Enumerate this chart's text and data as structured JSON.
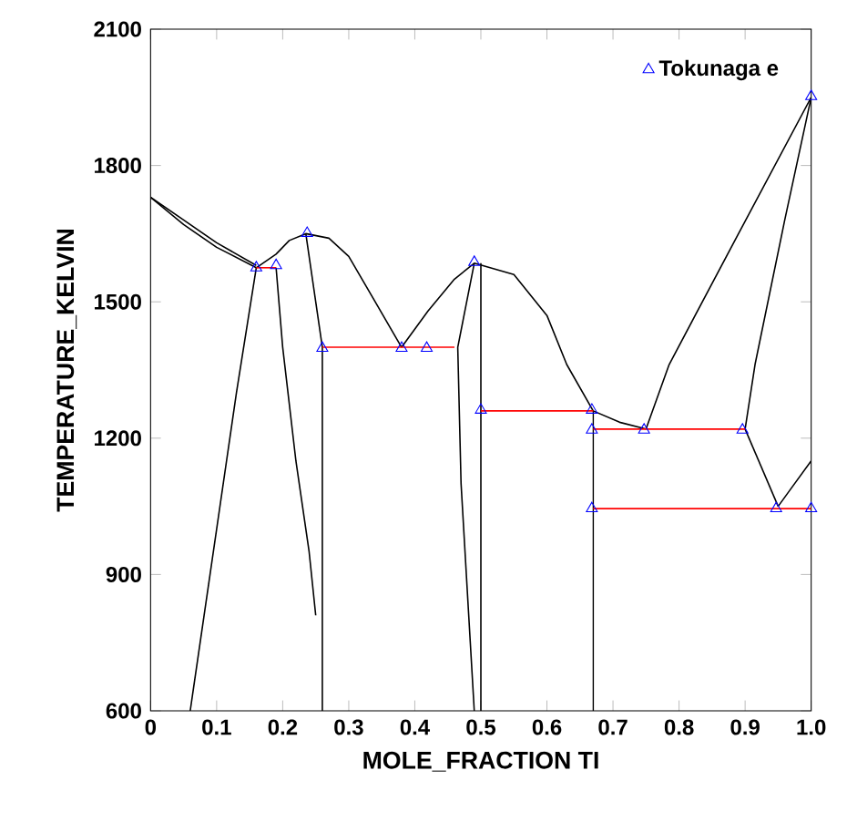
{
  "chart_data": {
    "type": "line",
    "xlabel": "MOLE_FRACTION TI",
    "ylabel": "TEMPERATURE_KELVIN",
    "xlim": [
      0,
      1
    ],
    "ylim": [
      600,
      2100
    ],
    "xticks": [
      0,
      0.1,
      0.2,
      0.3,
      0.4,
      0.5,
      0.6,
      0.7,
      0.8,
      0.9,
      {
        "value": 1,
        "label": "1.0"
      }
    ],
    "yticks": [
      600,
      900,
      1200,
      1500,
      1800,
      2100
    ],
    "grid": false,
    "legend": "top right",
    "marker": "none",
    "line_style": "solid",
    "series": [
      {
        "color": "#000000",
        "x": [
          0,
          0.05,
          0.1,
          0.16
        ],
        "values": [
          1730,
          1680,
          1630,
          1580
        ]
      },
      {
        "color": "#000000",
        "x": [
          0,
          0.05,
          0.1,
          0.16
        ],
        "values": [
          1730,
          1670,
          1620,
          1575
        ]
      },
      {
        "color": "#000000",
        "x": [
          0.16,
          0.19,
          0.21,
          0.235,
          0.27,
          0.3,
          0.34,
          0.38
        ],
        "values": [
          1575,
          1605,
          1635,
          1650,
          1640,
          1600,
          1500,
          1400
        ]
      },
      {
        "color": "#000000",
        "x": [
          0.38,
          0.42,
          0.46,
          0.49,
          0.55,
          0.6,
          0.63,
          0.67,
          0.71,
          0.75
        ],
        "values": [
          1400,
          1480,
          1550,
          1585,
          1560,
          1470,
          1362,
          1260,
          1235,
          1220
        ]
      },
      {
        "color": "#000000",
        "x": [
          0.75,
          0.785,
          0.89,
          1.0
        ],
        "values": [
          1220,
          1362,
          1650,
          1950
        ]
      },
      {
        "color": "#000000",
        "x": [
          0.9,
          0.915,
          0.96,
          1.0
        ],
        "values": [
          1220,
          1362,
          1680,
          1950
        ]
      },
      {
        "color": "#000000",
        "x": [
          0.9,
          0.95
        ],
        "values": [
          1220,
          1050
        ]
      },
      {
        "color": "#000000",
        "x": [
          0.95,
          0.97,
          1.0
        ],
        "values": [
          1050,
          1090,
          1150
        ]
      },
      {
        "color": "#000000",
        "x": [
          0.06,
          0.1,
          0.13,
          0.16
        ],
        "values": [
          600,
          1000,
          1300,
          1575
        ]
      },
      {
        "color": "#000000",
        "x": [
          0.19,
          0.2,
          0.22,
          0.24,
          0.25
        ],
        "values": [
          1575,
          1400,
          1150,
          950,
          810
        ]
      },
      {
        "color": "#000000",
        "x": [
          0.235,
          0.26,
          0.26
        ],
        "values": [
          1650,
          1400,
          600
        ]
      },
      {
        "color": "#000000",
        "x": [
          0.49,
          0.465,
          0.47,
          0.49
        ],
        "values": [
          1585,
          1400,
          1100,
          600
        ]
      },
      {
        "color": "#000000",
        "x": [
          0.5,
          0.5
        ],
        "values": [
          1585,
          600
        ]
      },
      {
        "color": "#000000",
        "x": [
          0.67,
          0.67
        ],
        "values": [
          1260,
          600
        ]
      },
      {
        "color": "#ff0000",
        "x": [
          0.16,
          0.19
        ],
        "values": [
          1575,
          1575
        ]
      },
      {
        "color": "#ff0000",
        "x": [
          0.26,
          0.46
        ],
        "values": [
          1400,
          1400
        ]
      },
      {
        "color": "#ff0000",
        "x": [
          0.5,
          0.67
        ],
        "values": [
          1260,
          1260
        ]
      },
      {
        "color": "#ff0000",
        "x": [
          0.67,
          0.9
        ],
        "values": [
          1220,
          1220
        ]
      },
      {
        "color": "#ff0000",
        "x": [
          0.67,
          1.0
        ],
        "values": [
          1045,
          1045
        ]
      },
      {
        "type": "scatter",
        "marker": "triangle",
        "name": "Tokunaga e",
        "color": "#0000ff",
        "x": [
          0.16,
          0.19,
          0.237,
          0.26,
          0.38,
          0.418,
          0.49,
          0.5,
          0.668,
          0.668,
          0.747,
          0.896,
          0.668,
          0.947,
          1.0,
          1.0
        ],
        "values": [
          1575,
          1580,
          1651,
          1398,
          1398,
          1398,
          1587,
          1262,
          1262,
          1218,
          1218,
          1218,
          1045,
          1045,
          1045,
          1952
        ]
      }
    ]
  }
}
